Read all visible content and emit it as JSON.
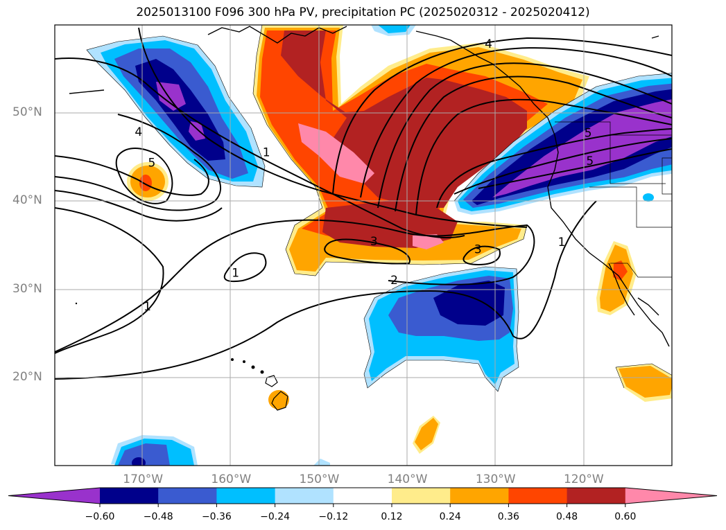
{
  "title": "2025013100 F096 300 hPa PV, precipitation PC (2025020312 - 2025020412)",
  "map": {
    "lon_range": [
      -180,
      -110
    ],
    "lat_range": [
      10,
      60
    ],
    "lat_labels": [
      {
        "lat": 50,
        "label": "50°N"
      },
      {
        "lat": 40,
        "label": "40°N"
      },
      {
        "lat": 30,
        "label": "30°N"
      },
      {
        "lat": 20,
        "label": "20°N"
      }
    ],
    "lon_labels": [
      {
        "lon": -170,
        "label": "170°W"
      },
      {
        "lon": -160,
        "label": "160°W"
      },
      {
        "lon": -150,
        "label": "150°W"
      },
      {
        "lon": -140,
        "label": "140°W"
      },
      {
        "lon": -130,
        "label": "130°W"
      },
      {
        "lon": -120,
        "label": "120°W"
      }
    ],
    "gridlines": true,
    "contour_labels": [
      {
        "text": "4",
        "lon": -170.5,
        "lat": 47.8
      },
      {
        "text": "5",
        "lon": -169.0,
        "lat": 44.3
      },
      {
        "text": "1",
        "lon": -156.0,
        "lat": 45.5
      },
      {
        "text": "1",
        "lon": -159.5,
        "lat": 31.8
      },
      {
        "text": "1",
        "lon": -169.5,
        "lat": 28.0
      },
      {
        "text": "3",
        "lon": -143.8,
        "lat": 35.4
      },
      {
        "text": "2",
        "lon": -141.5,
        "lat": 31.0
      },
      {
        "text": "3",
        "lon": -132.0,
        "lat": 34.5
      },
      {
        "text": "1",
        "lon": -122.5,
        "lat": 35.3
      },
      {
        "text": "4",
        "lon": -130.8,
        "lat": 57.8
      },
      {
        "text": "5",
        "lon": -119.5,
        "lat": 47.7
      },
      {
        "text": "5",
        "lon": -119.3,
        "lat": 44.5
      }
    ]
  },
  "colorbar": {
    "colors": [
      "#9932cc",
      "#00008b",
      "#3a5bd0",
      "#00bfff",
      "#b0e2ff",
      "#ffffff",
      "#ffec8b",
      "#ffa500",
      "#ff4500",
      "#b22222",
      "#ff88aa"
    ],
    "ticks": [
      "−0.60",
      "−0.48",
      "−0.36",
      "−0.24",
      "−0.12",
      "0.12",
      "0.24",
      "0.36",
      "0.48",
      "0.60"
    ]
  },
  "legend_colors": {
    "purple": "#9932cc",
    "navy": "#00008b",
    "royal": "#3a5bd0",
    "sky": "#00bfff",
    "pale_blue": "#b0e2ff",
    "yellow": "#ffec8b",
    "orange": "#ffa500",
    "red_orange": "#ff4500",
    "firebrick": "#b22222",
    "pink": "#ff88aa"
  }
}
